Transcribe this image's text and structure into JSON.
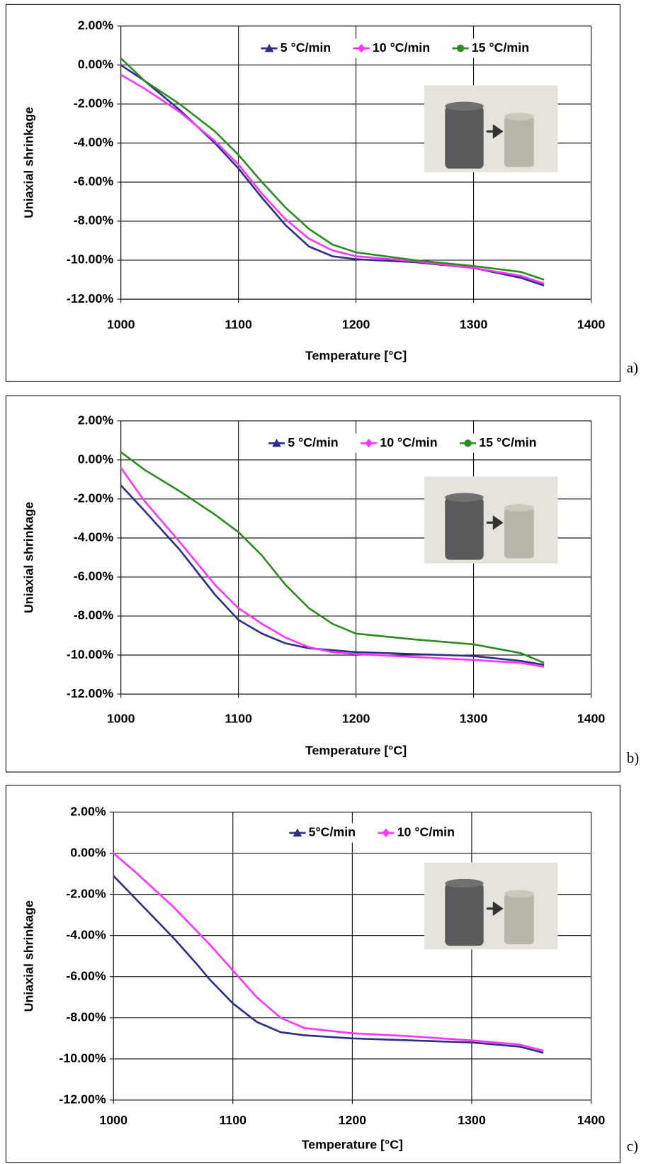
{
  "chart_data": [
    {
      "type": "line",
      "panel_label": "a)",
      "ylabel": "Uniaxial shrinkage",
      "xlabel": "Temperature [°C]",
      "xlim": [
        1000,
        1400
      ],
      "xticks": [
        1000,
        1100,
        1200,
        1300,
        1400
      ],
      "ylim": [
        -12,
        2
      ],
      "yticks": [
        {
          "value": -12,
          "label": "-12.00%"
        },
        {
          "value": -10,
          "label": "-10.00%"
        },
        {
          "value": -8,
          "label": "-8.00%"
        },
        {
          "value": -6,
          "label": "-6.00%"
        },
        {
          "value": -4,
          "label": "-4.00%"
        },
        {
          "value": -2,
          "label": "-2.00%"
        },
        {
          "value": 0,
          "label": "0.00%"
        },
        {
          "value": 2,
          "label": "2.00%"
        }
      ],
      "grid": true,
      "legend": "top",
      "x": [
        1000,
        1020,
        1050,
        1080,
        1100,
        1120,
        1140,
        1160,
        1180,
        1200,
        1250,
        1300,
        1340,
        1360
      ],
      "series": [
        {
          "name": "5 °C/min",
          "color": "#2b2f86",
          "marker": "triangle",
          "values": [
            0,
            -0.8,
            -2.3,
            -4.0,
            -5.3,
            -6.8,
            -8.2,
            -9.3,
            -9.8,
            -9.95,
            -10.1,
            -10.4,
            -10.9,
            -11.3
          ]
        },
        {
          "name": "10 °C/min",
          "color": "#ff33ff",
          "marker": "diamond",
          "values": [
            -0.5,
            -1.2,
            -2.4,
            -3.9,
            -5.1,
            -6.6,
            -7.9,
            -8.9,
            -9.5,
            -9.8,
            -10.05,
            -10.4,
            -10.8,
            -11.2
          ]
        },
        {
          "name": "15 °C/min",
          "color": "#2e8b22",
          "marker": "circle",
          "values": [
            0.35,
            -0.8,
            -2.0,
            -3.4,
            -4.6,
            -6.0,
            -7.3,
            -8.4,
            -9.2,
            -9.6,
            -10.0,
            -10.3,
            -10.6,
            -11.0
          ]
        }
      ]
    },
    {
      "type": "line",
      "panel_label": "b)",
      "ylabel": "Uniaxial shrinkage",
      "xlabel": "Temperature [°C]",
      "xlim": [
        1000,
        1400
      ],
      "xticks": [
        1000,
        1100,
        1200,
        1300,
        1400
      ],
      "ylim": [
        -12,
        2
      ],
      "yticks": [
        {
          "value": -12,
          "label": "-12.00%"
        },
        {
          "value": -10,
          "label": "-10.00%"
        },
        {
          "value": -8,
          "label": "-8.00%"
        },
        {
          "value": -6,
          "label": "-6.00%"
        },
        {
          "value": -4,
          "label": "-4.00%"
        },
        {
          "value": -2,
          "label": "-2.00%"
        },
        {
          "value": 0,
          "label": "0.00%"
        },
        {
          "value": 2,
          "label": "2.00%"
        }
      ],
      "grid": true,
      "legend": "top",
      "x": [
        1000,
        1020,
        1050,
        1080,
        1100,
        1120,
        1140,
        1160,
        1180,
        1200,
        1250,
        1300,
        1340,
        1360
      ],
      "series": [
        {
          "name": "5 °C/min",
          "color": "#2b2f86",
          "marker": "triangle",
          "values": [
            -1.3,
            -2.6,
            -4.6,
            -6.9,
            -8.2,
            -8.9,
            -9.4,
            -9.65,
            -9.75,
            -9.85,
            -9.95,
            -10.05,
            -10.3,
            -10.5
          ]
        },
        {
          "name": "10 °C/min",
          "color": "#ff33ff",
          "marker": "diamond",
          "values": [
            -0.4,
            -2.1,
            -4.2,
            -6.4,
            -7.6,
            -8.4,
            -9.1,
            -9.6,
            -9.85,
            -9.95,
            -10.1,
            -10.25,
            -10.4,
            -10.6
          ]
        },
        {
          "name": "15 °C/min",
          "color": "#2e8b22",
          "marker": "circle",
          "values": [
            0.4,
            -0.5,
            -1.6,
            -2.8,
            -3.7,
            -4.9,
            -6.4,
            -7.6,
            -8.4,
            -8.9,
            -9.2,
            -9.45,
            -9.9,
            -10.4
          ]
        }
      ]
    },
    {
      "type": "line",
      "panel_label": "c)",
      "ylabel": "Uniaxial shrinkage",
      "xlabel": "Temperature [°C]",
      "xlim": [
        1000,
        1400
      ],
      "xticks": [
        1000,
        1100,
        1200,
        1300,
        1400
      ],
      "ylim": [
        -12,
        2
      ],
      "yticks": [
        {
          "value": -12,
          "label": "-12.00%"
        },
        {
          "value": -10,
          "label": "-10.00%"
        },
        {
          "value": -8,
          "label": "-8.00%"
        },
        {
          "value": -6,
          "label": "-6.00%"
        },
        {
          "value": -4,
          "label": "-4.00%"
        },
        {
          "value": -2,
          "label": "-2.00%"
        },
        {
          "value": 0,
          "label": "0.00%"
        },
        {
          "value": 2,
          "label": "2.00%"
        }
      ],
      "grid": true,
      "legend": "top",
      "x": [
        1000,
        1020,
        1050,
        1070,
        1080,
        1100,
        1120,
        1140,
        1160,
        1200,
        1250,
        1300,
        1340,
        1360
      ],
      "series": [
        {
          "name": "5°C/min",
          "color": "#2b2f86",
          "marker": "triangle",
          "values": [
            -1.1,
            -2.3,
            -4.1,
            -5.4,
            -6.1,
            -7.3,
            -8.2,
            -8.7,
            -8.85,
            -9.0,
            -9.1,
            -9.2,
            -9.4,
            -9.7
          ]
        },
        {
          "name": "10 °C/min",
          "color": "#ff33ff",
          "marker": "diamond",
          "values": [
            0,
            -1.0,
            -2.6,
            -3.8,
            -4.4,
            -5.7,
            -7.0,
            -8.0,
            -8.5,
            -8.75,
            -8.9,
            -9.1,
            -9.3,
            -9.6
          ]
        }
      ]
    }
  ]
}
